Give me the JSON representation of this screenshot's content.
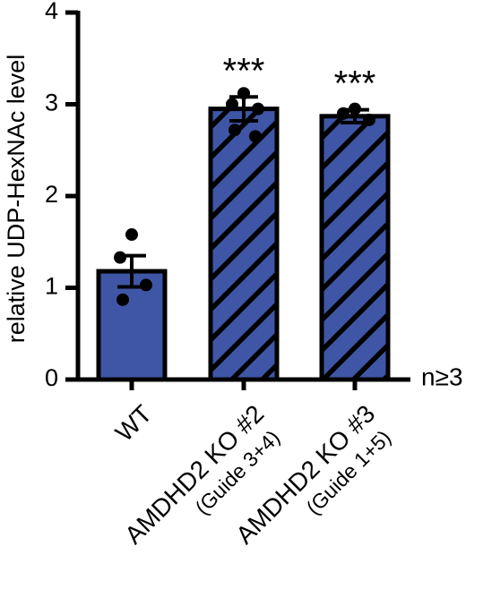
{
  "chart_data": {
    "type": "bar",
    "ylabel": "relative UDP-HexNAc level",
    "ylim": [
      0,
      4
    ],
    "yticks": [
      "0",
      "1",
      "2",
      "3",
      "4"
    ],
    "categories": [
      {
        "label": "WT",
        "sublabel": ""
      },
      {
        "label": "AMDHD2 KO #2",
        "sublabel": "(Guide 3+4)"
      },
      {
        "label": "AMDHD2 KO #3",
        "sublabel": "(Guide 1+5)"
      }
    ],
    "values": [
      1.18,
      2.95,
      2.87
    ],
    "errors": [
      0.17,
      0.13,
      0.07
    ],
    "points": [
      [
        1.58,
        1.33,
        1.03,
        0.87
      ],
      [
        3.12,
        3.0,
        2.95,
        2.72,
        2.65
      ],
      [
        2.95,
        2.9,
        2.83
      ]
    ],
    "significance": [
      "",
      "***",
      "***"
    ],
    "hatched": [
      false,
      true,
      true
    ],
    "note": "n≥3",
    "colors": {
      "bar": "#3f56a6",
      "outline": "#000000",
      "hatch": "#000000"
    },
    "grid": false,
    "legend": "none"
  }
}
